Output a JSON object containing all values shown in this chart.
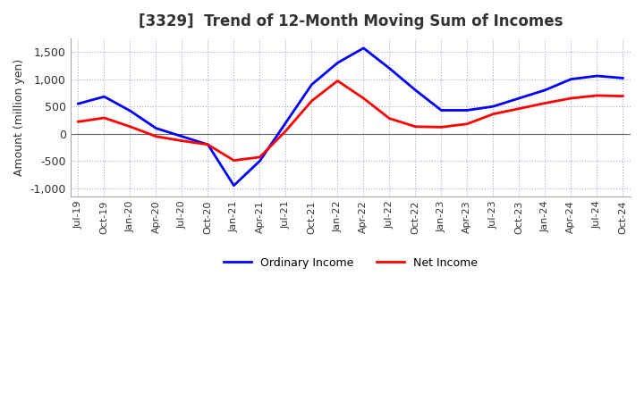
{
  "title": "[3329]  Trend of 12-Month Moving Sum of Incomes",
  "ylabel": "Amount (million yen)",
  "ylim": [
    -1150,
    1750
  ],
  "yticks": [
    -1000,
    -500,
    0,
    500,
    1000,
    1500
  ],
  "background_color": "#ffffff",
  "grid_color": "#aaaacc",
  "ordinary_income_color": "#0000ff",
  "net_income_color": "#ff0000",
  "x_labels": [
    "Jul-19",
    "Oct-19",
    "Jan-20",
    "Apr-20",
    "Jul-20",
    "Oct-20",
    "Jan-21",
    "Apr-21",
    "Jul-21",
    "Oct-21",
    "Jan-22",
    "Apr-22",
    "Jul-22",
    "Oct-22",
    "Jan-23",
    "Apr-23",
    "Jul-23",
    "Oct-23",
    "Jan-24",
    "Apr-24",
    "Jul-24",
    "Oct-24"
  ],
  "ordinary_income": [
    550,
    680,
    420,
    100,
    -50,
    -200,
    -950,
    -500,
    200,
    900,
    1300,
    1570,
    1200,
    800,
    430,
    430,
    500,
    650,
    800,
    1000,
    1060,
    1020
  ],
  "net_income": [
    220,
    290,
    130,
    -50,
    -130,
    -200,
    -490,
    -430,
    50,
    600,
    970,
    650,
    280,
    130,
    120,
    180,
    360,
    460,
    560,
    650,
    700,
    690
  ]
}
